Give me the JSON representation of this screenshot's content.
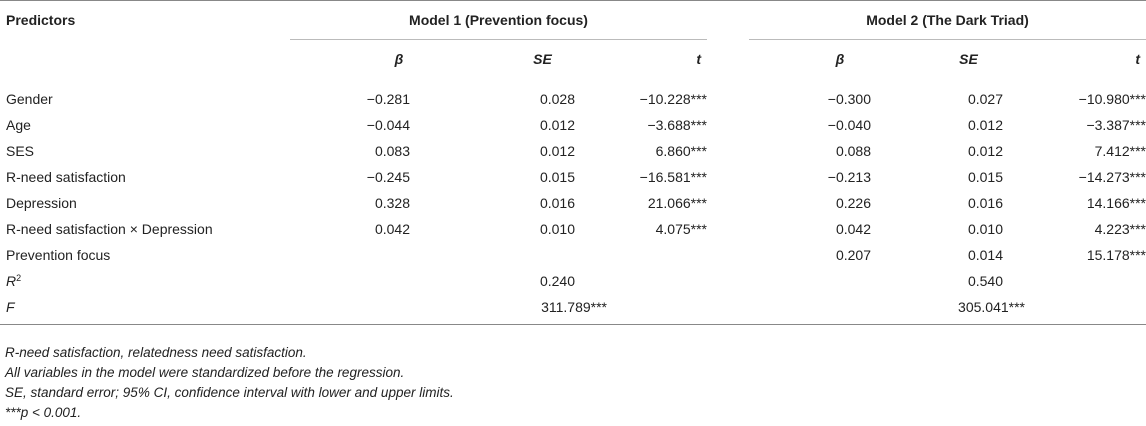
{
  "header": {
    "predictors": "Predictors",
    "model1": "Model 1 (Prevention focus)",
    "model2": "Model 2 (The Dark Triad)",
    "beta": "β",
    "se": "SE",
    "t": "t"
  },
  "rows": [
    {
      "label": "Gender",
      "m1": [
        "−0.281",
        "0.028",
        "−10.228***"
      ],
      "m2": [
        "−0.300",
        "0.027",
        "−10.980***"
      ]
    },
    {
      "label": "Age",
      "m1": [
        "−0.044",
        "0.012",
        "−3.688***"
      ],
      "m2": [
        "−0.040",
        "0.012",
        "−3.387***"
      ]
    },
    {
      "label": "SES",
      "m1": [
        "0.083",
        "0.012",
        "6.860***"
      ],
      "m2": [
        "0.088",
        "0.012",
        "7.412***"
      ]
    },
    {
      "label": "R-need satisfaction",
      "m1": [
        "−0.245",
        "0.015",
        "−16.581***"
      ],
      "m2": [
        "−0.213",
        "0.015",
        "−14.273***"
      ]
    },
    {
      "label": "Depression",
      "m1": [
        "0.328",
        "0.016",
        "21.066***"
      ],
      "m2": [
        "0.226",
        "0.016",
        "14.166***"
      ]
    },
    {
      "label": "R-need satisfaction × Depression",
      "m1": [
        "0.042",
        "0.010",
        "4.075***"
      ],
      "m2": [
        "0.042",
        "0.010",
        "4.223***"
      ]
    },
    {
      "label": "Prevention focus",
      "m1": [
        "",
        "",
        ""
      ],
      "m2": [
        "0.207",
        "0.014",
        "15.178***"
      ]
    }
  ],
  "r2": {
    "label": "R",
    "sup": "2",
    "m1": "0.240",
    "m2": "0.540"
  },
  "f": {
    "label": "F",
    "m1": "311.789***",
    "m2": "305.041***"
  },
  "notes": [
    "R-need satisfaction, relatedness need satisfaction.",
    "All variables in the model were standardized before the regression.",
    "SE, standard error; 95% CI, confidence interval with lower and upper limits.",
    "***p < 0.001."
  ]
}
